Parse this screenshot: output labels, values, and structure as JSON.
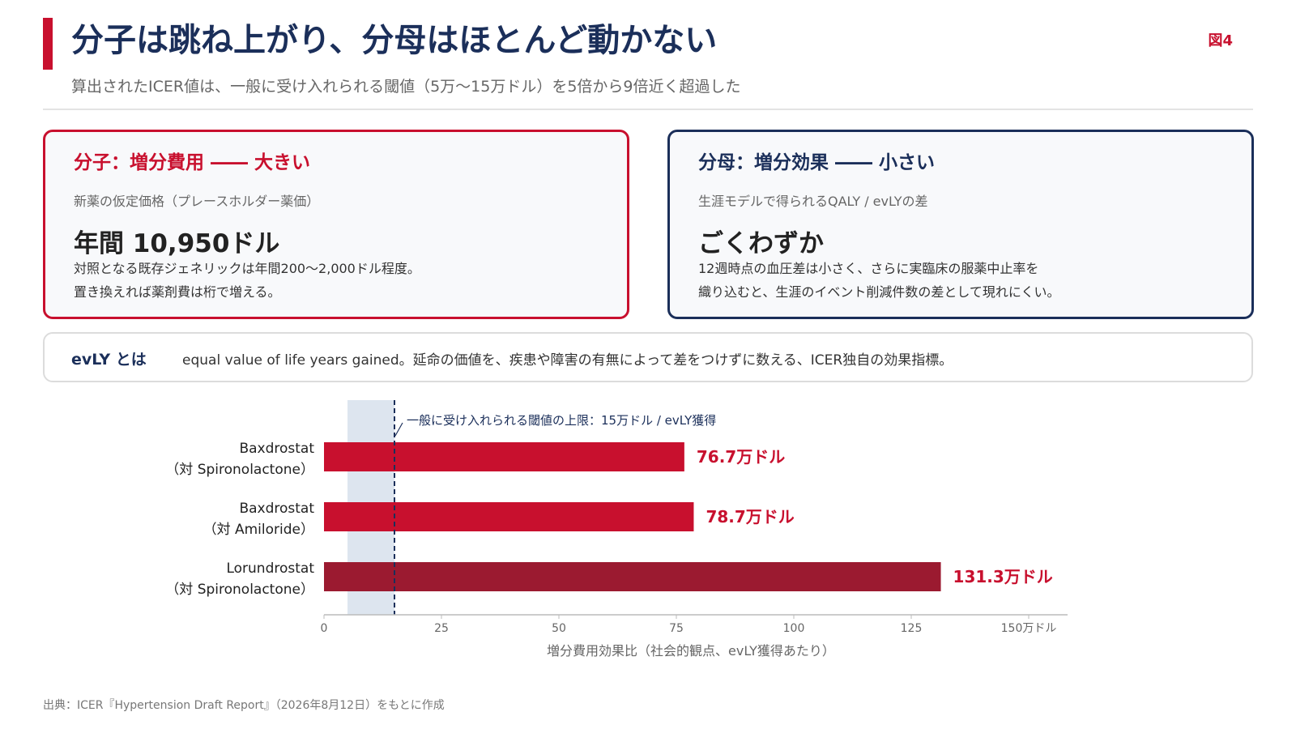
{
  "header": {
    "title": "分子は跳ね上がり、分母はほとんど動かない",
    "subtitle": "算出されたICER値は、一般に受け入れられる閾値（5万〜15万ドル）を5倍から9倍近く超過した",
    "figure_label": "図4"
  },
  "cards": {
    "numerator": {
      "heading": "分子：増分費用 ―― 大きい",
      "sub": "新薬の仮定価格（プレースホルダー薬価）",
      "big": "年間 10,950ドル",
      "line1": "対照となる既存ジェネリックは年間200〜2,000ドル程度。",
      "line2": "置き換えれば薬剤費は桁で増える。"
    },
    "denominator": {
      "heading": "分母：増分効果 ―― 小さい",
      "sub": "生涯モデルで得られるQALY / evLYの差",
      "big": "ごくわずか",
      "line1": "12週時点の血圧差は小さく、さらに実臨床の服薬中止率を",
      "line2": "織り込むと、生涯のイベント削減件数の差として現れにくい。"
    }
  },
  "evly": {
    "term": "evLY とは",
    "definition": "equal value of life years gained。延命の価値を、疾患や障害の有無によって差をつけずに数える、ICER独自の効果指標。"
  },
  "chart_data": {
    "type": "bar",
    "orientation": "horizontal",
    "categories": [
      [
        "Baxdrostat",
        "（対 Spironolactone）"
      ],
      [
        "Baxdrostat",
        "（対 Amiloride）"
      ],
      [
        "Lorundrostat",
        "（対 Spironolactone）"
      ]
    ],
    "values": [
      76.7,
      78.7,
      131.3
    ],
    "value_labels": [
      "76.7万ドル",
      "78.7万ドル",
      "131.3万ドル"
    ],
    "xlim": [
      0,
      150
    ],
    "xticks": [
      0,
      25,
      50,
      75,
      100,
      125,
      150
    ],
    "xtick_labels": [
      "0",
      "25",
      "50",
      "75",
      "100",
      "125",
      "150万ドル"
    ],
    "xlabel": "増分費用効果比（社会的観点、evLY獲得あたり）",
    "threshold_band": [
      5,
      15
    ],
    "threshold_line": 15,
    "threshold_annotation": "一般に受け入れられる閾値の上限：15万ドル / evLY獲得",
    "colors": {
      "bar": "#c8102e",
      "bar_highlight": "#9b1a30",
      "value_label": "#c8102e",
      "band": "#dde5ef",
      "threshold": "#1b2f5a"
    }
  },
  "footer": {
    "source": "出典：ICER『Hypertension Draft Report』（2026年8月12日）をもとに作成"
  }
}
